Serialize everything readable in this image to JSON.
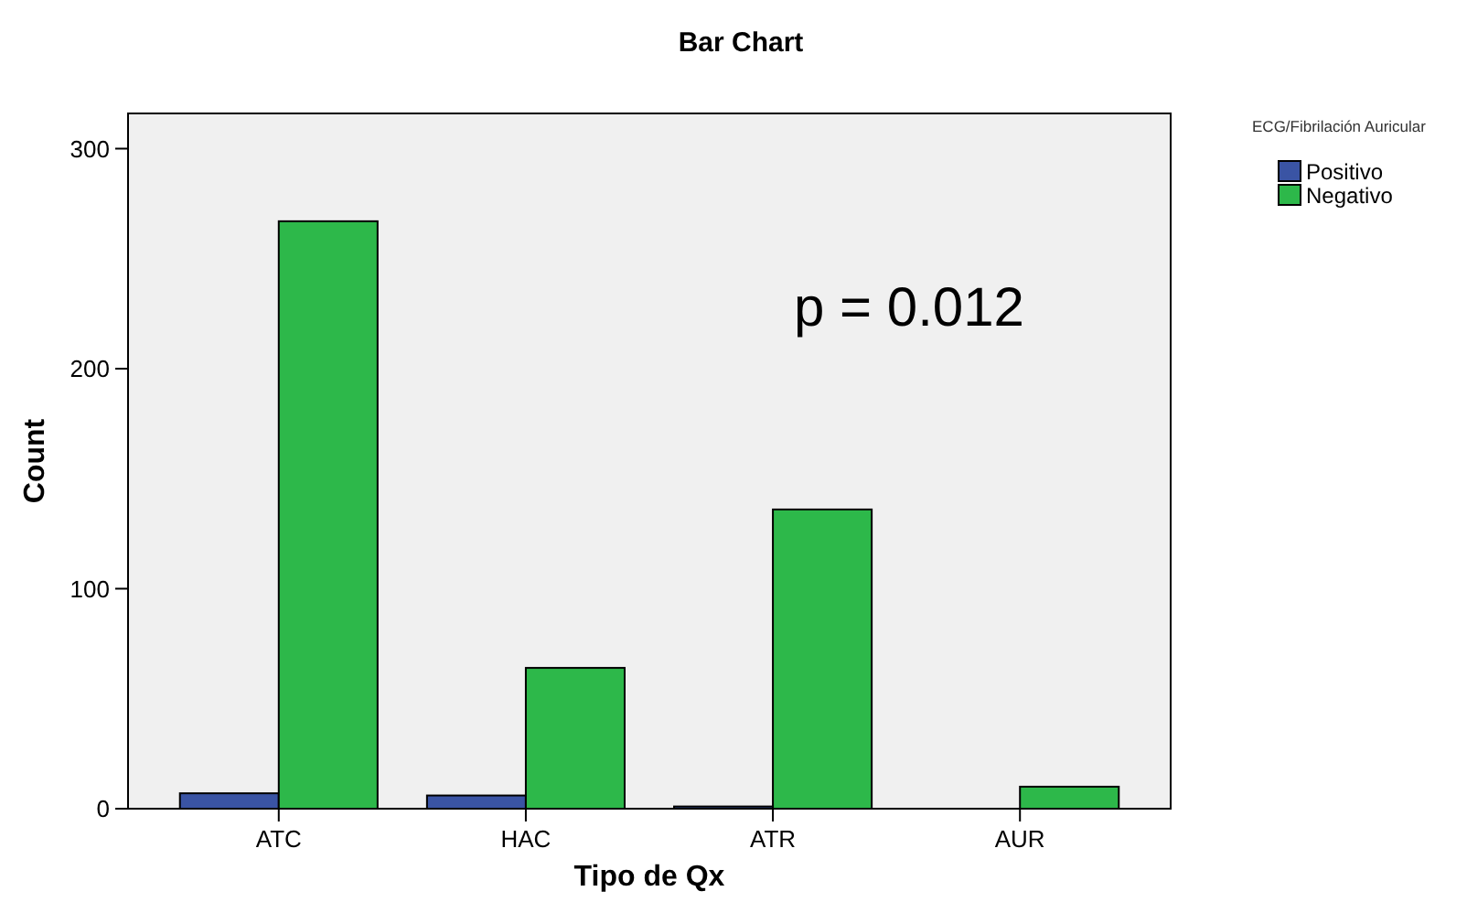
{
  "chart_data": {
    "type": "bar",
    "title": "Bar Chart",
    "xlabel": "Tipo de Qx",
    "ylabel": "Count",
    "legend_title": "ECG/Fibrilación Auricular",
    "categories": [
      "ATC",
      "HAC",
      "ATR",
      "AUR"
    ],
    "series": [
      {
        "name": "Positivo",
        "color": "#3a54a4",
        "values": [
          7,
          6,
          1,
          0
        ]
      },
      {
        "name": "Negativo",
        "color": "#2db84a",
        "values": [
          267,
          64,
          136,
          10
        ]
      }
    ],
    "ylim": [
      0,
      316
    ],
    "yticks": [
      0,
      100,
      200,
      300
    ],
    "grid": false,
    "legend": "top right",
    "annotations": [
      "p = 0.012"
    ]
  }
}
